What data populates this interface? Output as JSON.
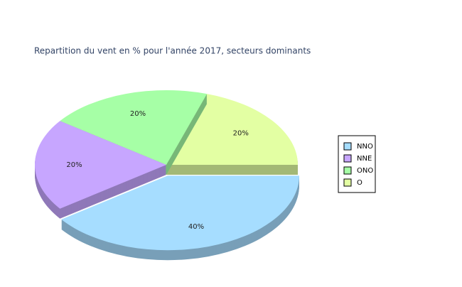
{
  "chart_data": {
    "type": "pie",
    "title": "Repartition du vent en % pour l'année 2017, secteurs dominants",
    "categories": [
      "NNO",
      "NNE",
      "ONO",
      "O"
    ],
    "values": [
      40,
      20,
      20,
      20
    ],
    "value_labels": [
      "40%",
      "20%",
      "20%",
      "20%"
    ],
    "colors": [
      "#a6ddff",
      "#c7a6ff",
      "#a6ffa6",
      "#e3ffa3"
    ],
    "legend": "right"
  }
}
